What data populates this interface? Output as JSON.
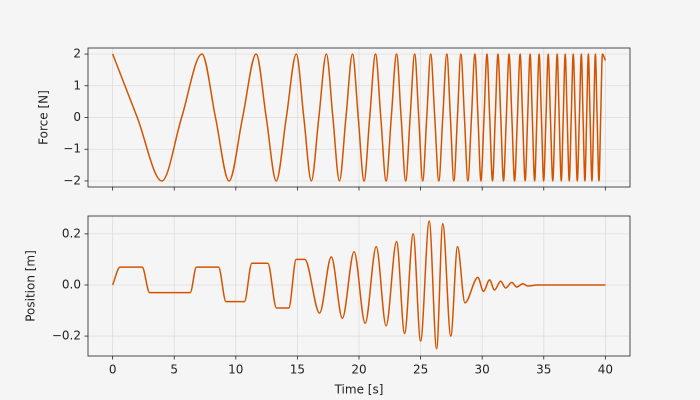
{
  "chart_data": [
    {
      "type": "line",
      "ylabel": "Force [N]",
      "color": "#d35400",
      "grid": true,
      "xlim": [
        -2,
        42
      ],
      "ylim": [
        -2.19,
        2.19
      ],
      "xticks": [
        0,
        5,
        10,
        15,
        20,
        25,
        30,
        35,
        40
      ],
      "yticks": [
        {
          "value": -2,
          "label": "−2"
        },
        {
          "value": -1,
          "label": "−1"
        },
        0,
        1,
        2
      ],
      "x": [
        0,
        2.0,
        4.0,
        5.6,
        7.25,
        8.35,
        9.45,
        10.55,
        11.65,
        12.47,
        13.28,
        14.1,
        14.91,
        15.52,
        16.13,
        16.74,
        17.35,
        17.88,
        18.41,
        18.94,
        19.47,
        19.94,
        20.41,
        20.87,
        21.34,
        21.77,
        22.2,
        22.62,
        23.05,
        23.42,
        23.79,
        24.15,
        24.52,
        24.85,
        25.17,
        25.5,
        25.82,
        26.15,
        26.48,
        26.8,
        27.13,
        27.42,
        27.7,
        27.99,
        28.27,
        28.56,
        28.84,
        29.13,
        29.41,
        29.66,
        29.9,
        30.15,
        30.39,
        30.61,
        30.84,
        31.06,
        31.28,
        31.51,
        31.73,
        31.96,
        32.18,
        32.41,
        32.63,
        32.86,
        33.08,
        33.28,
        33.49,
        33.69,
        33.89,
        34.07,
        34.26,
        34.44,
        34.62,
        34.81,
        34.99,
        35.18,
        35.36,
        35.54,
        35.73,
        35.91,
        36.09,
        36.25,
        36.42,
        36.58,
        36.74,
        36.9,
        37.07,
        37.23,
        37.39,
        37.56,
        37.72,
        37.89,
        38.05,
        38.19,
        38.34,
        38.48,
        38.62,
        38.76,
        38.91,
        39.05,
        39.19,
        39.33,
        39.48,
        39.62,
        39.76,
        40
      ],
      "values": [
        2,
        0,
        -2,
        0,
        2,
        0,
        -2,
        0,
        2,
        0,
        -2,
        0,
        2,
        0,
        -2,
        0,
        2,
        0,
        -2,
        0,
        2,
        0,
        -2,
        0,
        2,
        0,
        -2,
        0,
        2,
        0,
        -2,
        0,
        2,
        0,
        -2,
        0,
        2,
        0,
        -2,
        0,
        2,
        0,
        -2,
        0,
        2,
        0,
        -2,
        0,
        2,
        0,
        -2,
        0,
        2,
        0,
        -2,
        0,
        2,
        0,
        -2,
        0,
        2,
        0,
        -2,
        0,
        2,
        0,
        -2,
        0,
        2,
        0,
        -2,
        0,
        2,
        0,
        -2,
        0,
        2,
        0,
        -2,
        0,
        2,
        0,
        -2,
        0,
        2,
        0,
        -2,
        0,
        2,
        0,
        -2,
        0,
        2,
        0,
        -2,
        0,
        2,
        0,
        -2,
        0,
        2,
        0,
        -2,
        0,
        2,
        1.8
      ]
    },
    {
      "type": "line",
      "ylabel": "Position [m]",
      "xlabel": "Time [s]",
      "color": "#d35400",
      "grid": true,
      "xlim": [
        -2,
        42
      ],
      "ylim": [
        -0.278,
        0.27
      ],
      "xticks": [
        0,
        5,
        10,
        15,
        20,
        25,
        30,
        35,
        40
      ],
      "yticks": [
        {
          "value": -0.2,
          "label": "−0.2"
        },
        {
          "value": 0,
          "label": "0.0"
        },
        0.2
      ],
      "x": [
        0,
        0.6,
        2.4,
        3.0,
        6.3,
        6.8,
        8.6,
        9.2,
        10.7,
        11.3,
        12.6,
        13.3,
        14.3,
        14.9,
        15.6,
        16.8,
        17.75,
        18.65,
        19.6,
        20.5,
        21.4,
        22.2,
        23.05,
        23.7,
        24.4,
        25.0,
        25.7,
        26.3,
        26.8,
        27.45,
        28.0,
        28.6,
        29.65,
        30.1,
        30.6,
        31.0,
        31.5,
        31.9,
        32.4,
        32.8,
        33.3,
        33.7,
        34.5,
        40
      ],
      "values": [
        0,
        0.07,
        0.07,
        -0.03,
        -0.03,
        0.07,
        0.07,
        -0.065,
        -0.065,
        0.085,
        0.085,
        -0.09,
        -0.09,
        0.1,
        0.1,
        -0.11,
        0.11,
        -0.13,
        0.13,
        -0.15,
        0.15,
        -0.16,
        0.17,
        -0.19,
        0.2,
        -0.22,
        0.25,
        -0.25,
        0.24,
        -0.2,
        0.15,
        -0.07,
        0.03,
        -0.025,
        0.02,
        -0.02,
        0.015,
        -0.012,
        0.01,
        -0.008,
        0.005,
        -0.004,
        0,
        0
      ]
    }
  ]
}
